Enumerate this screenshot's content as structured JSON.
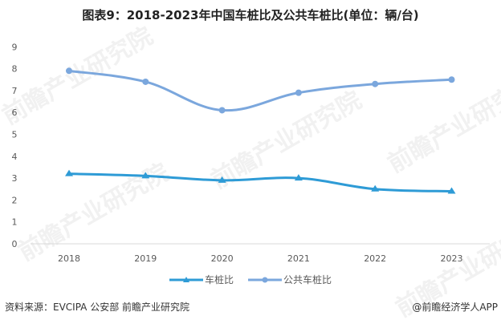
{
  "title": "图表9：2018-2023年中国车桩比及公共车桩比(单位：辆/台)",
  "chart_data": {
    "type": "line",
    "title": "图表9：2018-2023年中国车桩比及公共车桩比(单位：辆/台)",
    "xlabel": "",
    "ylabel": "",
    "categories": [
      "2018",
      "2019",
      "2020",
      "2021",
      "2022",
      "2023"
    ],
    "ylim": [
      0,
      9
    ],
    "yticks": [
      0,
      1,
      2,
      3,
      4,
      5,
      6,
      7,
      8,
      9
    ],
    "grid": false,
    "legend_position": "bottom",
    "series": [
      {
        "name": "车桩比",
        "marker": "triangle",
        "color": "#2E9BD6",
        "values": [
          3.2,
          3.1,
          2.9,
          3.0,
          2.5,
          2.4
        ]
      },
      {
        "name": "公共车桩比",
        "marker": "circle",
        "color": "#7BA7DD",
        "values": [
          7.9,
          7.4,
          6.1,
          6.9,
          7.3,
          7.5
        ]
      }
    ]
  },
  "legend": {
    "items": [
      {
        "label": "车桩比",
        "color": "#2E9BD6"
      },
      {
        "label": "公共车桩比",
        "color": "#7BA7DD"
      }
    ]
  },
  "footer": {
    "source": "资料来源：EVCIPA 公安部 前瞻产业研究院",
    "credit": "@前瞻经济学人APP"
  },
  "watermark": "前瞻产业研究院"
}
